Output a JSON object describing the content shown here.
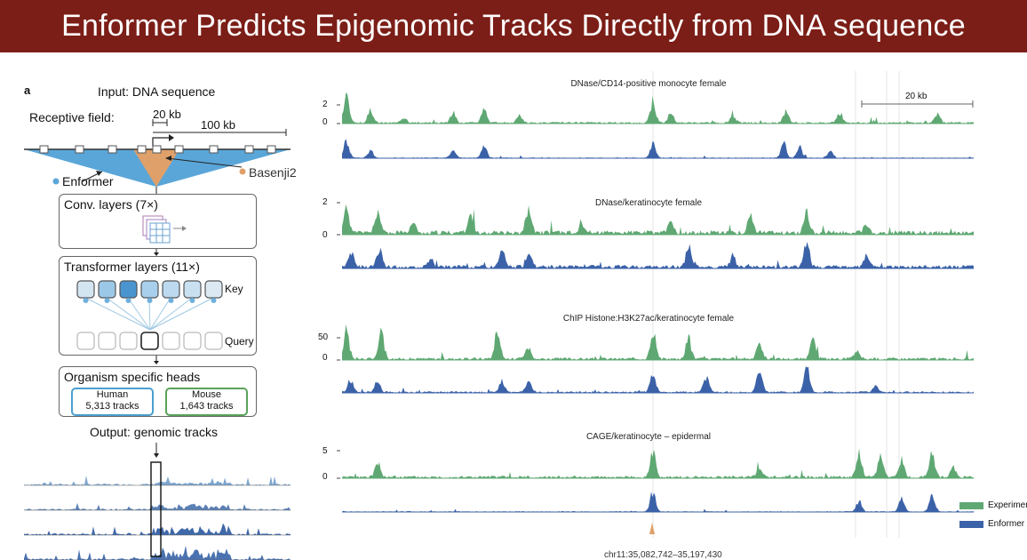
{
  "slide": {
    "title": "Enformer Predicts Epigenomic Tracks Directly from DNA sequence"
  },
  "diagram": {
    "panel_label": "a",
    "input_label": "Input: DNA sequence",
    "receptive_field_label": "Receptive field:",
    "scale_20kb": "20 kb",
    "scale_100kb": "100 kb",
    "enformer_label": "Enformer",
    "basenji_label": "Basenji2",
    "conv_label": "Conv. layers (7×)",
    "transformer_label": "Transformer layers (11×)",
    "key_label": "Key",
    "query_label": "Query",
    "heads_label": "Organism specific heads",
    "human_head": {
      "name": "Human",
      "tracks": "5,313 tracks"
    },
    "mouse_head": {
      "name": "Mouse",
      "tracks": "1,643 tracks"
    },
    "output_label": "Output: genomic tracks",
    "colors": {
      "enformer": "#5aa6d8",
      "basenji": "#e0a06a",
      "human_box": "#4a9fd0",
      "mouse_box": "#5aa25a"
    }
  },
  "tracks_panel": {
    "scale_label": "20 kb",
    "coordinate_label": "chr11:35,082,742–35,197,430",
    "legend": [
      {
        "label": "Experiment",
        "color": "#5fa873"
      },
      {
        "label": "Enformer",
        "color": "#3b62a8"
      }
    ],
    "tracks": [
      {
        "title": "DNase/CD14-positive monocyte female",
        "y_ticks": [
          "2",
          "0"
        ]
      },
      {
        "title": "DNase/keratinocyte female",
        "y_ticks": [
          "2",
          "0"
        ]
      },
      {
        "title": "ChIP Histone:H3K27ac/keratinocyte female",
        "y_ticks": [
          "50",
          "0"
        ]
      },
      {
        "title": "CAGE/keratinocyte – epidermal",
        "y_ticks": [
          "5",
          "0"
        ]
      }
    ]
  }
}
